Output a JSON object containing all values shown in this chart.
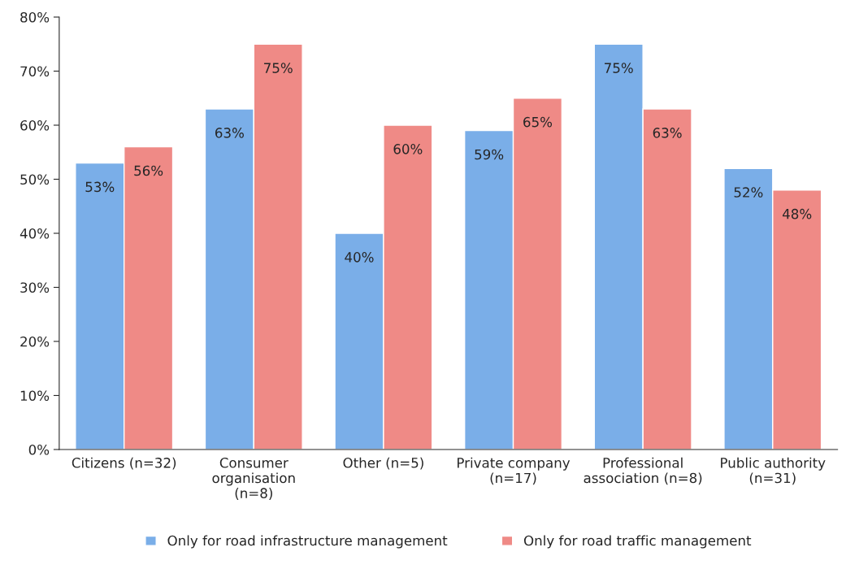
{
  "chart_data": {
    "type": "bar",
    "categories": [
      "Citizens (n=32)",
      "Consumer\norganisation\n(n=8)",
      "Other (n=5)",
      "Private company\n(n=17)",
      "Professional\nassociation (n=8)",
      "Public authority\n(n=31)"
    ],
    "series": [
      {
        "name": "Only for road infrastructure management",
        "color": "#7aaee8",
        "values": [
          53,
          63,
          40,
          59,
          75,
          52
        ],
        "value_labels": [
          "53%",
          "63%",
          "40%",
          "59%",
          "75%",
          "52%"
        ]
      },
      {
        "name": "Only for road traffic management",
        "color": "#ef8a86",
        "values": [
          56,
          75,
          60,
          65,
          63,
          48
        ],
        "value_labels": [
          "56%",
          "75%",
          "60%",
          "65%",
          "63%",
          "48%"
        ]
      }
    ],
    "ylim": [
      0,
      80
    ],
    "yticks": [
      {
        "value": 0,
        "label": "0%"
      },
      {
        "value": 10,
        "label": "10%"
      },
      {
        "value": 20,
        "label": "20%"
      },
      {
        "value": 30,
        "label": "30%"
      },
      {
        "value": 40,
        "label": "40%"
      },
      {
        "value": 50,
        "label": "50%"
      },
      {
        "value": 60,
        "label": "60%"
      },
      {
        "value": 70,
        "label": "70%"
      },
      {
        "value": 80,
        "label": "80%"
      }
    ],
    "grid": false,
    "legend": "bottom"
  }
}
